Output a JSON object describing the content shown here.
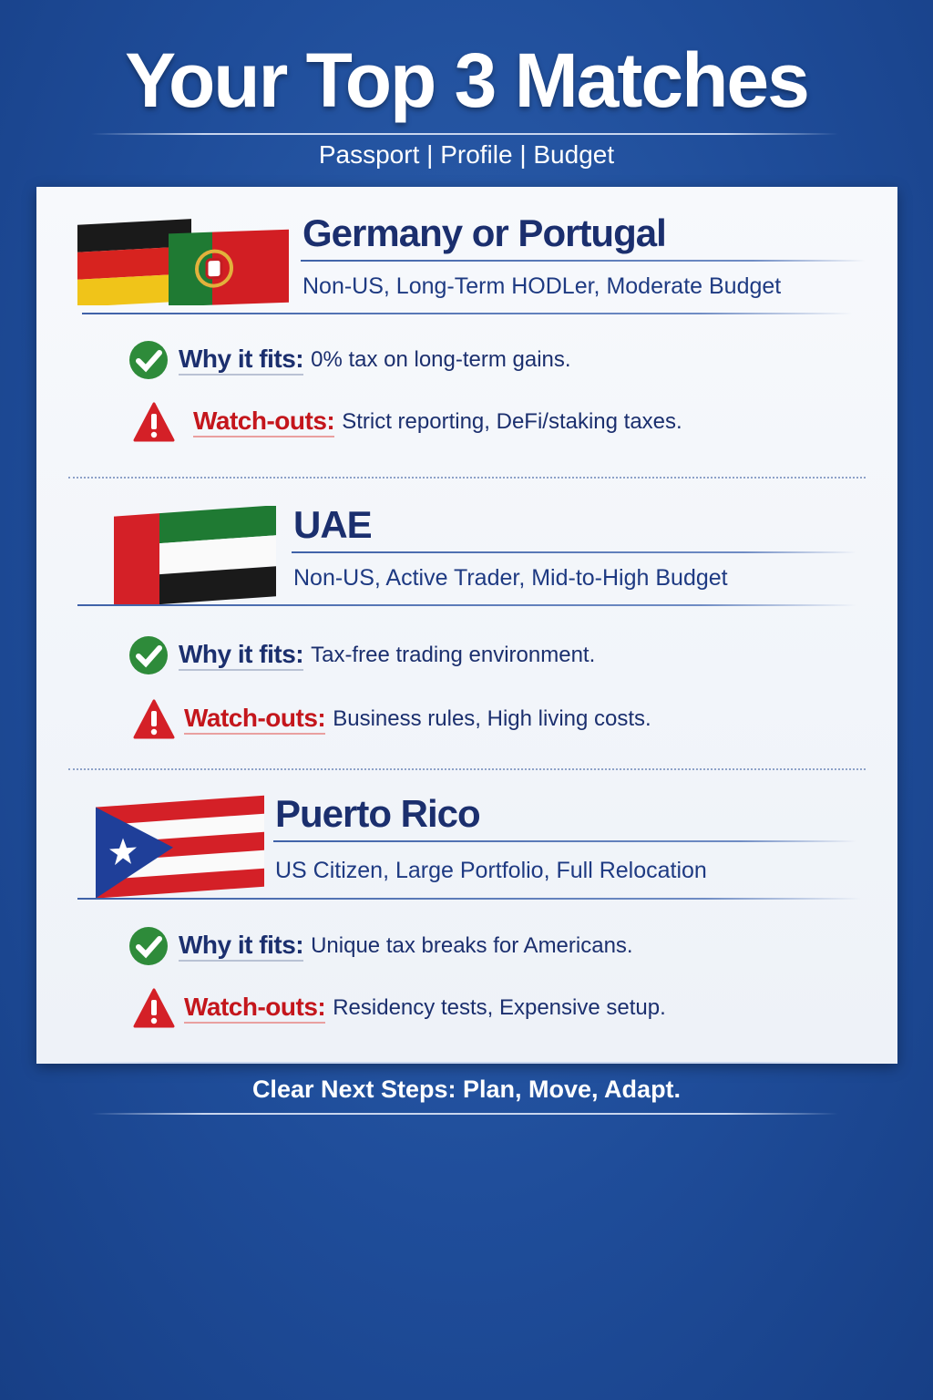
{
  "header": {
    "title": "Your Top 3 Matches",
    "subtitle": "Passport | Profile | Budget"
  },
  "matches": [
    {
      "name": "Germany or Portugal",
      "profile": "Non-US, Long-Term HODLer, Moderate Budget",
      "flags": [
        "germany-flag",
        "portugal-flag"
      ],
      "why_label": "Why it fits:",
      "why": "0% tax on long-term gains.",
      "watch_label": "Watch-outs:",
      "watch": "Strict reporting, DeFi/staking taxes."
    },
    {
      "name": "UAE",
      "profile": "Non-US, Active Trader, Mid-to-High Budget",
      "flags": [
        "uae-flag"
      ],
      "why_label": "Why it fits:",
      "why": "Tax-free trading environment.",
      "watch_label": "Watch-outs:",
      "watch": "Business rules, High living costs."
    },
    {
      "name": "Puerto Rico",
      "profile": "US Citizen, Large Portfolio, Full Relocation",
      "flags": [
        "puerto-rico-flag"
      ],
      "why_label": "Why it fits:",
      "why": "Unique tax breaks for Americans.",
      "watch_label": "Watch-outs:",
      "watch": "Residency tests, Expensive setup."
    }
  ],
  "footer": "Clear Next Steps: Plan, Move, Adapt.",
  "colors": {
    "background": "#1f4d9a",
    "heading": "#1b2f6e",
    "check": "#2e8b3a",
    "warning": "#d42027"
  }
}
